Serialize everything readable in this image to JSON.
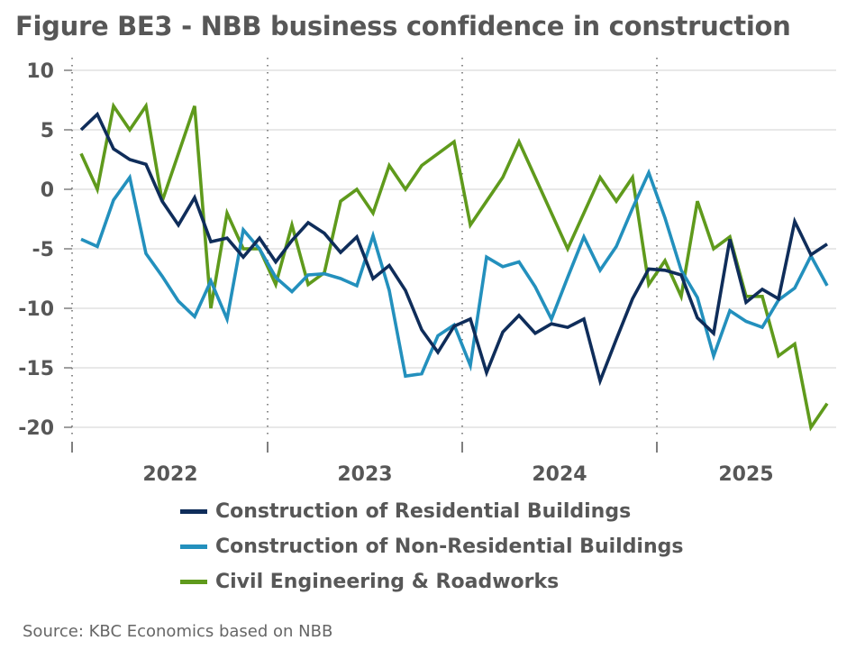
{
  "chart_data": {
    "type": "line",
    "title": "Figure BE3 - NBB business confidence in construction",
    "xlabel": "",
    "ylabel": "",
    "ylim": [
      -20,
      10
    ],
    "yticks": [
      10,
      5,
      0,
      -5,
      -10,
      -15,
      -20
    ],
    "ytick_labels": [
      "10",
      "5",
      "0",
      "-5",
      "-10",
      "-15",
      "-20"
    ],
    "x_period_labels": [
      "2022",
      "2023",
      "2024",
      "2025"
    ],
    "x_start": "2022-01",
    "x_frequency": "monthly",
    "grid": true,
    "legend_position": "bottom",
    "series": [
      {
        "name": "Construction of Residential Buildings",
        "color": "#0f2d5a",
        "values": [
          5,
          6.3,
          3.4,
          2.5,
          2.1,
          -1,
          -3,
          -0.7,
          -4.4,
          -4.1,
          -5.7,
          -4.1,
          -6.1,
          -4.3,
          -2.8,
          -3.7,
          -5.3,
          -4.0,
          -7.5,
          -6.4,
          -8.5,
          -11.8,
          -13.7,
          -11.5,
          -10.9,
          -15.4,
          -12,
          -10.6,
          -12.1,
          -11.3,
          -11.6,
          -10.9,
          -16.1,
          -12.6,
          -9.2,
          -6.7,
          -6.8,
          -7.2,
          -10.8,
          -12.1,
          -4.2,
          -9.5,
          -8.4,
          -9.2,
          -2.7,
          -5.5,
          -4.6
        ]
      },
      {
        "name": "Construction of Non-Residential Buildings",
        "color": "#2390bd",
        "values": [
          -4.2,
          -4.8,
          -0.9,
          1.0,
          -5.4,
          -7.3,
          -9.4,
          -10.7,
          -7.7,
          -10.9,
          -3.4,
          -5.0,
          -7.4,
          -8.6,
          -7.2,
          -7.1,
          -7.5,
          -8.1,
          -3.9,
          -8.5,
          -15.7,
          -15.5,
          -12.3,
          -11.4,
          -14.8,
          -5.7,
          -6.5,
          -6.1,
          -8.2,
          -10.9,
          -7.4,
          -4.0,
          -6.8,
          -4.8,
          -1.6,
          1.4,
          -2.4,
          -6.8,
          -9.1,
          -14,
          -10.2,
          -11.1,
          -11.6,
          -9.3,
          -8.3,
          -5.6,
          -8.1
        ]
      },
      {
        "name": "Civil Engineering & Roadworks",
        "color": "#5f9a1c",
        "values": [
          3,
          0,
          7,
          5,
          7,
          -1,
          3,
          7,
          -10,
          -2,
          -5,
          -5,
          -8,
          -3,
          -8,
          -7,
          -1,
          0,
          -2,
          2,
          0,
          2,
          3,
          4,
          -3,
          -1,
          1,
          4,
          1,
          -2,
          -5,
          -2,
          1,
          -1,
          1,
          -8,
          -6,
          -9,
          -1,
          -5,
          -4,
          -9,
          -9,
          -14,
          -13,
          -20,
          -18
        ]
      }
    ]
  },
  "source_text": "Source: KBC Economics based on NBB"
}
